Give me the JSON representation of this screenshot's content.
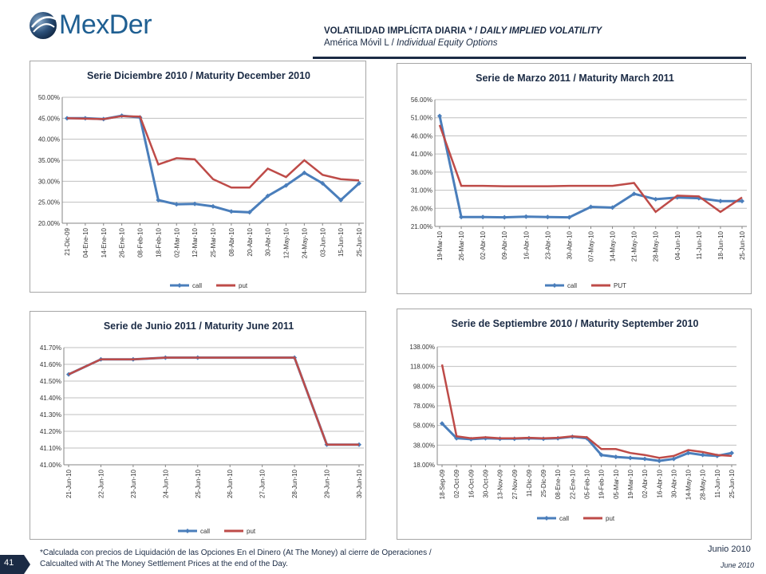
{
  "header": {
    "logo_text": "MexDer",
    "title_es": "VOLATILIDAD IMPLÍCITA DIARIA * / ",
    "title_en": "DAILY IMPLIED VOLATILITY",
    "subtitle_es": "América Móvil L / ",
    "subtitle_en": "Individual Equity Options"
  },
  "footer": {
    "note_line1": "*Calculada con precios de Liquidación de las Opciones En el Dinero (At The Money) al cierre de Operaciones /",
    "note_line2": "Calcualted with At The Money Settlement Prices at the end of the Day.",
    "date_es": "Junio 2010",
    "date_en": "June 2010",
    "page_number": "41"
  },
  "colors": {
    "call": "#4a7ebb",
    "put": "#be4b48",
    "grid": "#bfbfbf",
    "axis": "#868686",
    "text": "#1b2b45"
  },
  "chart_data": [
    {
      "type": "line",
      "title": "Serie Diciembre 2010 / Maturity December 2010",
      "categories": [
        "21-Dic-09",
        "04-Ene-10",
        "14-Ene-10",
        "26-Ene-10",
        "08-Feb-10",
        "18-Feb-10",
        "02-Mar-10",
        "12-Mar-10",
        "25-Mar-10",
        "08-Abr-10",
        "20-Abr-10",
        "30-Abr-10",
        "12-May-10",
        "24-May-10",
        "03-Jun-10",
        "15-Jun-10",
        "25-Jun-10"
      ],
      "y_ticks": [
        "50.00%",
        "45.00%",
        "40.00%",
        "35.00%",
        "30.00%",
        "25.00%",
        "20.00%"
      ],
      "ylim": [
        20,
        50
      ],
      "series": [
        {
          "name": "call",
          "values": [
            45.0,
            45.0,
            44.8,
            45.6,
            45.2,
            25.5,
            24.5,
            24.6,
            24.0,
            22.8,
            22.6,
            26.5,
            29.0,
            32.0,
            29.5,
            25.5,
            29.5
          ]
        },
        {
          "name": "put",
          "values": [
            45.0,
            44.9,
            44.8,
            45.5,
            45.4,
            34.0,
            35.5,
            35.2,
            30.5,
            28.5,
            28.5,
            33.0,
            31.0,
            35.0,
            31.5,
            30.5,
            30.2
          ]
        }
      ]
    },
    {
      "type": "line",
      "title": "Serie de Marzo 2011 / Maturity March 2011",
      "categories": [
        "19-Mar-10",
        "26-Mar-10",
        "02-Abr-10",
        "09-Abr-10",
        "16-Abr-10",
        "23-Abr-10",
        "30-Abr-10",
        "07-May-10",
        "14-May-10",
        "21-May-10",
        "28-May-10",
        "04-Jun-10",
        "11-Jun-10",
        "18-Jun-10",
        "25-Jun-10"
      ],
      "y_ticks": [
        "56.00%",
        "51.00%",
        "46.00%",
        "41.00%",
        "36.00%",
        "31.00%",
        "26.00%",
        "21.00%"
      ],
      "ylim": [
        21,
        56
      ],
      "series": [
        {
          "name": "call",
          "values": [
            51.5,
            23.6,
            23.6,
            23.5,
            23.7,
            23.6,
            23.5,
            26.4,
            26.2,
            30.0,
            28.5,
            29.0,
            28.8,
            28.0,
            28.0
          ]
        },
        {
          "name": "PUT",
          "values": [
            49.0,
            32.2,
            32.2,
            32.1,
            32.1,
            32.1,
            32.2,
            32.2,
            32.2,
            33.0,
            25.0,
            29.5,
            29.3,
            25.0,
            29.0
          ]
        }
      ]
    },
    {
      "type": "line",
      "title": "Serie de Junio 2011 / Maturity June 2011",
      "categories": [
        "21-Jun-10",
        "22-Jun-10",
        "23-Jun-10",
        "24-Jun-10",
        "25-Jun-10",
        "26-Jun-10",
        "27-Jun-10",
        "28-Jun-10",
        "29-Jun-10",
        "30-Jun-10"
      ],
      "y_ticks": [
        "41.70%",
        "41.60%",
        "41.50%",
        "41.40%",
        "41.30%",
        "41.20%",
        "41.10%",
        "41.00%"
      ],
      "ylim": [
        41.0,
        41.7
      ],
      "series": [
        {
          "name": "call",
          "values": [
            41.54,
            41.63,
            41.63,
            41.64,
            41.64,
            null,
            null,
            41.64,
            41.12,
            41.12
          ]
        },
        {
          "name": "put",
          "values": [
            41.54,
            41.63,
            41.63,
            41.64,
            41.64,
            null,
            null,
            41.64,
            41.12,
            41.12
          ]
        }
      ]
    },
    {
      "type": "line",
      "title": "Serie de Septiembre 2010 / Maturity September 2010",
      "categories": [
        "18-Sep-09",
        "02-Oct-09",
        "16-Oct-09",
        "30-Oct-09",
        "13-Nov-09",
        "27-Nov-09",
        "11-Dic-09",
        "25-Dic-09",
        "08-Ene-10",
        "22-Ene-10",
        "05-Feb-10",
        "19-Feb-10",
        "05-Mar-10",
        "19-Mar-10",
        "02-Abr-10",
        "16-Abr-10",
        "30-Abr-10",
        "14-May-10",
        "28-May-10",
        "11-Jun-10",
        "25-Jun-10"
      ],
      "y_ticks": [
        "138.00%",
        "118.00%",
        "98.00%",
        "78.00%",
        "58.00%",
        "38.00%",
        "18.00%"
      ],
      "ylim": [
        18,
        138
      ],
      "series": [
        {
          "name": "call",
          "values": [
            60.0,
            45.0,
            44.0,
            45.0,
            44.5,
            44.5,
            45.0,
            44.5,
            45.0,
            46.5,
            45.0,
            28.0,
            26.0,
            25.0,
            24.0,
            22.0,
            24.0,
            30.0,
            28.0,
            27.0,
            30.0
          ]
        },
        {
          "name": "put",
          "values": [
            120.0,
            47.0,
            45.0,
            46.0,
            45.0,
            45.0,
            45.5,
            45.0,
            45.5,
            47.0,
            46.0,
            34.0,
            34.0,
            30.0,
            28.0,
            25.0,
            27.0,
            33.0,
            31.0,
            28.0,
            27.0
          ]
        }
      ]
    }
  ]
}
